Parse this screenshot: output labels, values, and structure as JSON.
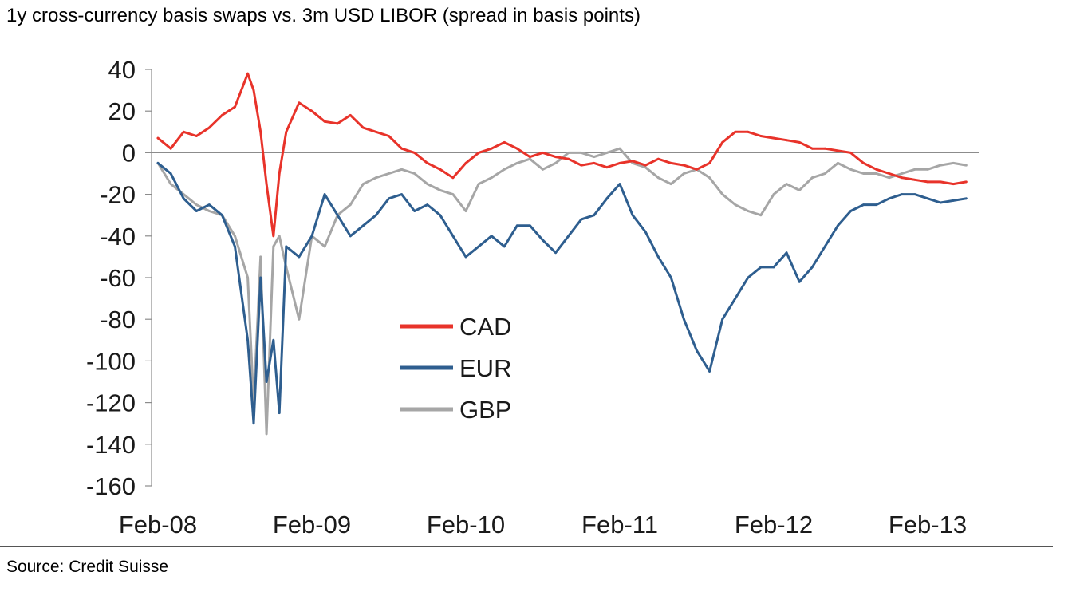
{
  "title": "1y cross-currency basis swaps vs. 3m USD LIBOR (spread in basis points)",
  "source": "Source: Credit Suisse",
  "chart_data": {
    "type": "line",
    "title": "1y cross-currency basis swaps vs. 3m USD LIBOR (spread in basis points)",
    "xlabel": "",
    "ylabel": "",
    "ylim": [
      -160,
      40
    ],
    "yticks": [
      40,
      20,
      0,
      -20,
      -40,
      -60,
      -80,
      -100,
      -120,
      -140,
      -160
    ],
    "ytick_labels": [
      "40",
      "20",
      "0",
      "-20",
      "-40",
      "-60",
      "-80",
      "-100",
      "-120",
      "-140",
      "-160"
    ],
    "xlim": [
      "2008-02",
      "2013-05"
    ],
    "xticks": [
      "2008-02",
      "2009-02",
      "2010-02",
      "2011-02",
      "2012-02",
      "2013-02"
    ],
    "xtick_labels": [
      "Feb-08",
      "Feb-09",
      "Feb-10",
      "Feb-11",
      "Feb-12",
      "Feb-13"
    ],
    "grid": false,
    "legend": "center-left",
    "series": [
      {
        "name": "CAD",
        "color": "#e8332a",
        "x": [
          "2008-02",
          "2008-03",
          "2008-04",
          "2008-05",
          "2008-06",
          "2008-07",
          "2008-08",
          "2008-09",
          "2008-09-15",
          "2008-10",
          "2008-10-15",
          "2008-11",
          "2008-11-15",
          "2008-12",
          "2009-01",
          "2009-02",
          "2009-03",
          "2009-04",
          "2009-05",
          "2009-06",
          "2009-07",
          "2009-08",
          "2009-09",
          "2009-10",
          "2009-11",
          "2009-12",
          "2010-01",
          "2010-02",
          "2010-03",
          "2010-04",
          "2010-05",
          "2010-06",
          "2010-07",
          "2010-08",
          "2010-09",
          "2010-10",
          "2010-11",
          "2010-12",
          "2011-01",
          "2011-02",
          "2011-03",
          "2011-04",
          "2011-05",
          "2011-06",
          "2011-07",
          "2011-08",
          "2011-09",
          "2011-10",
          "2011-11",
          "2011-12",
          "2012-01",
          "2012-02",
          "2012-03",
          "2012-04",
          "2012-05",
          "2012-06",
          "2012-07",
          "2012-08",
          "2012-09",
          "2012-10",
          "2012-11",
          "2012-12",
          "2013-01",
          "2013-02",
          "2013-03",
          "2013-04",
          "2013-05"
        ],
        "values": [
          7,
          2,
          10,
          8,
          12,
          18,
          22,
          38,
          30,
          10,
          -15,
          -40,
          -10,
          10,
          24,
          20,
          15,
          14,
          18,
          12,
          10,
          8,
          2,
          0,
          -5,
          -8,
          -12,
          -5,
          0,
          2,
          5,
          2,
          -2,
          0,
          -2,
          -3,
          -6,
          -5,
          -7,
          -5,
          -4,
          -6,
          -3,
          -5,
          -6,
          -8,
          -5,
          5,
          10,
          10,
          8,
          7,
          6,
          5,
          2,
          2,
          1,
          0,
          -5,
          -8,
          -10,
          -12,
          -13,
          -14,
          -14,
          -15,
          -14
        ]
      },
      {
        "name": "EUR",
        "color": "#2e5e8f",
        "x": [
          "2008-02",
          "2008-03",
          "2008-04",
          "2008-05",
          "2008-06",
          "2008-07",
          "2008-08",
          "2008-09",
          "2008-09-15",
          "2008-10",
          "2008-10-15",
          "2008-11",
          "2008-11-15",
          "2008-12",
          "2009-01",
          "2009-02",
          "2009-03",
          "2009-04",
          "2009-05",
          "2009-06",
          "2009-07",
          "2009-08",
          "2009-09",
          "2009-10",
          "2009-11",
          "2009-12",
          "2010-01",
          "2010-02",
          "2010-03",
          "2010-04",
          "2010-05",
          "2010-06",
          "2010-07",
          "2010-08",
          "2010-09",
          "2010-10",
          "2010-11",
          "2010-12",
          "2011-01",
          "2011-02",
          "2011-03",
          "2011-04",
          "2011-05",
          "2011-06",
          "2011-07",
          "2011-08",
          "2011-09",
          "2011-10",
          "2011-11",
          "2011-12",
          "2012-01",
          "2012-02",
          "2012-03",
          "2012-04",
          "2012-05",
          "2012-06",
          "2012-07",
          "2012-08",
          "2012-09",
          "2012-10",
          "2012-11",
          "2012-12",
          "2013-01",
          "2013-02",
          "2013-03",
          "2013-04",
          "2013-05"
        ],
        "values": [
          -5,
          -10,
          -22,
          -28,
          -25,
          -30,
          -45,
          -90,
          -130,
          -60,
          -110,
          -90,
          -125,
          -45,
          -50,
          -40,
          -20,
          -30,
          -40,
          -35,
          -30,
          -22,
          -20,
          -28,
          -25,
          -30,
          -40,
          -50,
          -45,
          -40,
          -45,
          -35,
          -35,
          -42,
          -48,
          -40,
          -32,
          -30,
          -22,
          -15,
          -30,
          -38,
          -50,
          -60,
          -80,
          -95,
          -105,
          -80,
          -70,
          -60,
          -55,
          -55,
          -48,
          -62,
          -55,
          -45,
          -35,
          -28,
          -25,
          -25,
          -22,
          -20,
          -20,
          -22,
          -24,
          -23,
          -22
        ]
      },
      {
        "name": "GBP",
        "color": "#a6a6a6",
        "x": [
          "2008-02",
          "2008-03",
          "2008-04",
          "2008-05",
          "2008-06",
          "2008-07",
          "2008-08",
          "2008-09",
          "2008-09-15",
          "2008-10",
          "2008-10-15",
          "2008-11",
          "2008-11-15",
          "2008-12",
          "2009-01",
          "2009-02",
          "2009-03",
          "2009-04",
          "2009-05",
          "2009-06",
          "2009-07",
          "2009-08",
          "2009-09",
          "2009-10",
          "2009-11",
          "2009-12",
          "2010-01",
          "2010-02",
          "2010-03",
          "2010-04",
          "2010-05",
          "2010-06",
          "2010-07",
          "2010-08",
          "2010-09",
          "2010-10",
          "2010-11",
          "2010-12",
          "2011-01",
          "2011-02",
          "2011-03",
          "2011-04",
          "2011-05",
          "2011-06",
          "2011-07",
          "2011-08",
          "2011-09",
          "2011-10",
          "2011-11",
          "2011-12",
          "2012-01",
          "2012-02",
          "2012-03",
          "2012-04",
          "2012-05",
          "2012-06",
          "2012-07",
          "2012-08",
          "2012-09",
          "2012-10",
          "2012-11",
          "2012-12",
          "2013-01",
          "2013-02",
          "2013-03",
          "2013-04",
          "2013-05"
        ],
        "values": [
          -5,
          -15,
          -20,
          -25,
          -28,
          -30,
          -40,
          -60,
          -120,
          -50,
          -135,
          -45,
          -40,
          -55,
          -80,
          -40,
          -45,
          -30,
          -25,
          -15,
          -12,
          -10,
          -8,
          -10,
          -15,
          -18,
          -20,
          -28,
          -15,
          -12,
          -8,
          -5,
          -3,
          -8,
          -5,
          0,
          0,
          -2,
          0,
          2,
          -5,
          -7,
          -12,
          -15,
          -10,
          -8,
          -12,
          -20,
          -25,
          -28,
          -30,
          -20,
          -15,
          -18,
          -12,
          -10,
          -5,
          -8,
          -10,
          -10,
          -12,
          -10,
          -8,
          -8,
          -6,
          -5,
          -6
        ]
      }
    ]
  }
}
